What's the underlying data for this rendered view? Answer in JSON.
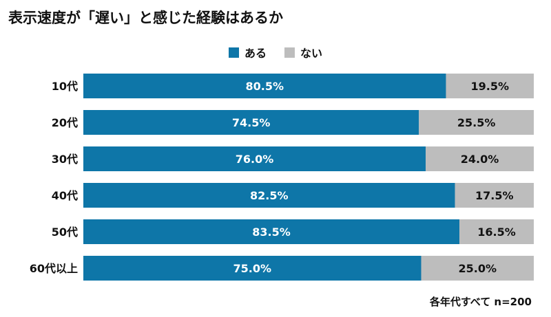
{
  "chart_data": {
    "type": "bar",
    "stacked": true,
    "orientation": "horizontal",
    "title": "表示速度が「遅い」と感じた経験はあるか",
    "categories": [
      "10代",
      "20代",
      "30代",
      "40代",
      "50代",
      "60代以上"
    ],
    "series": [
      {
        "name": "ある",
        "values": [
          80.5,
          74.5,
          76.0,
          82.5,
          83.5,
          75.0
        ],
        "labels": [
          "80.5%",
          "74.5%",
          "76.0%",
          "82.5%",
          "83.5%",
          "75.0%"
        ],
        "color": "#0e76a8"
      },
      {
        "name": "ない",
        "values": [
          19.5,
          25.5,
          24.0,
          17.5,
          16.5,
          25.0
        ],
        "labels": [
          "19.5%",
          "25.5%",
          "24.0%",
          "17.5%",
          "16.5%",
          "25.0%"
        ],
        "color": "#bdbdbd"
      }
    ],
    "xlim": [
      0,
      100
    ],
    "legend_position": "top-center",
    "grid": false,
    "note": "各年代すべて n=200"
  }
}
